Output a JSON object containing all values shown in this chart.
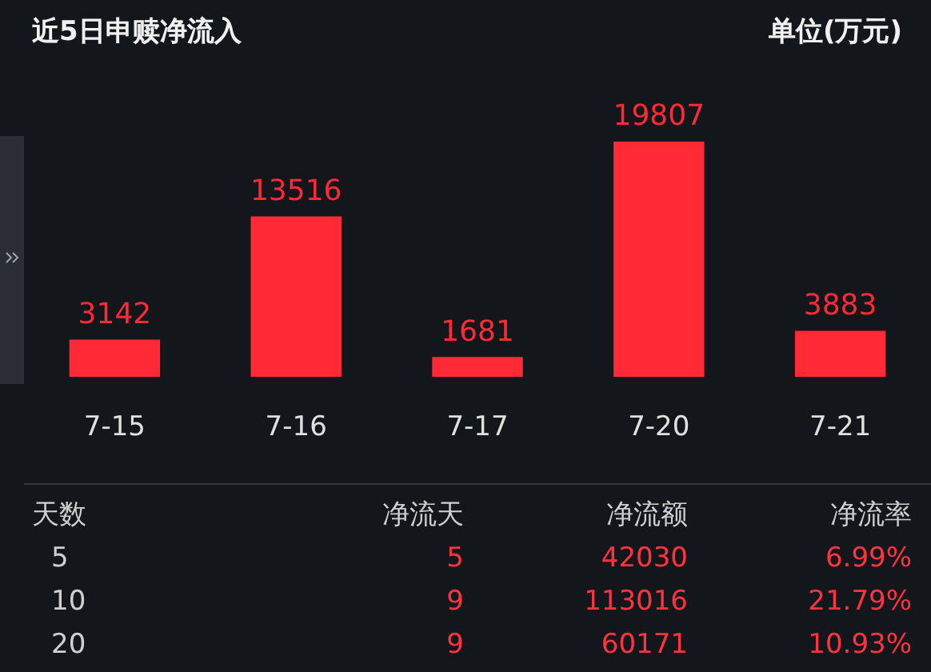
{
  "chart_data": {
    "type": "bar",
    "title": "近5日申赎净流入",
    "subtitle": "单位(万元)",
    "categories": [
      "7-15",
      "7-16",
      "7-17",
      "7-20",
      "7-21"
    ],
    "values": [
      3142,
      13516,
      1681,
      19807,
      3883
    ],
    "color": "#ff2a35",
    "data_labels": true,
    "legend": false,
    "annotations": [
      "天数",
      "净流天",
      "净流额",
      "净流率",
      "5",
      "5",
      "42030",
      "6.99%",
      "10",
      "9",
      "113016",
      "21.79%",
      "20",
      "9",
      "60171",
      "10.93%"
    ]
  }
}
